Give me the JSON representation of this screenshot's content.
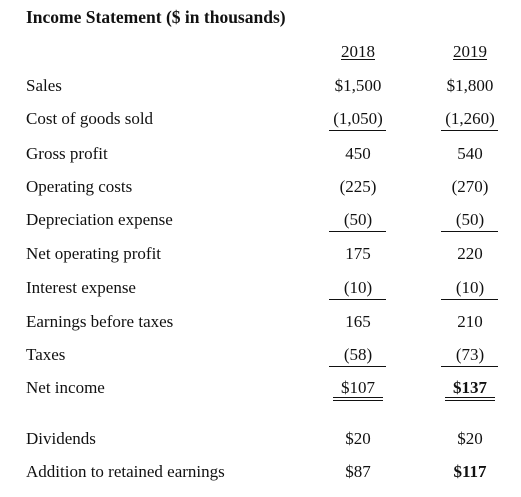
{
  "title": "Income Statement ($ in thousands)",
  "columns": [
    "2018",
    "2019"
  ],
  "rows": [
    {
      "label": "Sales",
      "v2018": "$1,500",
      "v2019": "$1,800"
    },
    {
      "label": "Cost of goods sold",
      "v2018": "(1,050)",
      "v2019": "(1,260)"
    },
    {
      "label": "Gross profit",
      "v2018": "450",
      "v2019": "540"
    },
    {
      "label": "Operating costs",
      "v2018": "(225)",
      "v2019": "(270)"
    },
    {
      "label": "Depreciation expense",
      "v2018": "(50)",
      "v2019": "(50)"
    },
    {
      "label": "Net operating profit",
      "v2018": "175",
      "v2019": "220"
    },
    {
      "label": "Interest expense",
      "v2018": "(10)",
      "v2019": "(10)"
    },
    {
      "label": "Earnings before taxes",
      "v2018": "165",
      "v2019": "210"
    },
    {
      "label": "Taxes",
      "v2018": "(58)",
      "v2019": "(73)"
    },
    {
      "label": "Net income",
      "v2018": "$107",
      "v2019": "$137"
    },
    {
      "label": "Dividends",
      "v2018": "$20",
      "v2019": "$20"
    },
    {
      "label": "Addition to retained earnings",
      "v2018": "$87",
      "v2019": "$117"
    }
  ]
}
